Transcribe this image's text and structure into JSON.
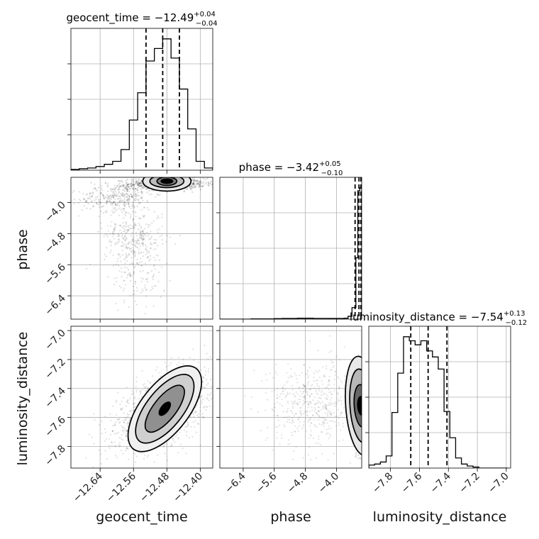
{
  "chart_data": {
    "type": "scatter",
    "title": "",
    "parameters": [
      {
        "name": "geocent_time",
        "title": {
          "prefix": "geocent_time = ",
          "median": "−12.49",
          "plus": "+0.04",
          "minus": "−0.04"
        },
        "range": [
          -12.71,
          -12.37
        ],
        "ticks": [
          -12.64,
          -12.56,
          -12.48,
          -12.4
        ],
        "tick_labels": [
          "−12.64",
          "−12.56",
          "−12.48",
          "−12.40"
        ],
        "quantiles": [
          -12.53,
          -12.49,
          -12.45
        ]
      },
      {
        "name": "phase",
        "title": {
          "prefix": "phase = ",
          "median": "−3.42",
          "plus": "+0.05",
          "minus": "−0.10"
        },
        "range": [
          -7.0,
          -3.35
        ],
        "ticks": [
          -6.4,
          -5.6,
          -4.8,
          -4.0
        ],
        "tick_labels": [
          "−6.4",
          "−5.6",
          "−4.8",
          "−4.0"
        ],
        "quantiles": [
          -3.52,
          -3.42,
          -3.37
        ]
      },
      {
        "name": "luminosity_distance",
        "title": {
          "prefix": "luminosity_distance = ",
          "median": "−7.54",
          "plus": "+0.13",
          "minus": "−0.12"
        },
        "range": [
          -7.95,
          -6.97
        ],
        "ticks": [
          -7.8,
          -7.6,
          -7.4,
          -7.2,
          -7.0
        ],
        "tick_labels": [
          "−7.8",
          "−7.6",
          "−7.4",
          "−7.2",
          "−7.0"
        ],
        "quantiles": [
          -7.66,
          -7.54,
          -7.41
        ]
      }
    ],
    "histograms": {
      "geocent_time": {
        "bin_edges": [
          -12.71,
          -12.69,
          -12.67,
          -12.65,
          -12.63,
          -12.61,
          -12.59,
          -12.57,
          -12.55,
          -12.53,
          -12.51,
          -12.49,
          -12.47,
          -12.45,
          -12.43,
          -12.41,
          -12.39,
          -12.37
        ],
        "counts": [
          1,
          2,
          3,
          5,
          8,
          12,
          28,
          68,
          105,
          148,
          165,
          178,
          152,
          110,
          56,
          12,
          3
        ]
      },
      "phase": {
        "bin_edges": [
          -7.0,
          -6.8,
          -6.6,
          -6.4,
          -6.2,
          -6.0,
          -5.8,
          -5.6,
          -5.4,
          -5.2,
          -5.0,
          -4.8,
          -4.6,
          -4.4,
          -4.2,
          -4.0,
          -3.8,
          -3.7,
          -3.6,
          -3.5,
          -3.45,
          -3.4,
          -3.35
        ],
        "counts": [
          0,
          0,
          0,
          0,
          0.4,
          0.4,
          0.4,
          0.7,
          0.9,
          0.9,
          1.3,
          1.3,
          1.0,
          1.0,
          0.9,
          0.9,
          1.3,
          4,
          16,
          85,
          178,
          182
        ]
      },
      "luminosity_distance": {
        "bin_edges": [
          -7.95,
          -7.91,
          -7.87,
          -7.83,
          -7.79,
          -7.75,
          -7.71,
          -7.67,
          -7.63,
          -7.59,
          -7.55,
          -7.51,
          -7.47,
          -7.43,
          -7.39,
          -7.35,
          -7.31,
          -7.27,
          -7.23,
          -7.19,
          -7.15,
          -7.11,
          -7.07,
          -7.03,
          -6.99
        ],
        "counts": [
          3,
          4,
          6,
          12,
          55,
          94,
          130,
          126,
          122,
          126,
          116,
          110,
          98,
          56,
          30,
          10,
          4,
          2,
          1,
          0,
          0,
          0,
          0,
          0
        ]
      }
    },
    "axis_labels": {
      "x": [
        "geocent_time",
        "phase",
        "luminosity_distance"
      ],
      "y": [
        "",
        "phase",
        "luminosity_distance"
      ]
    },
    "contour_levels": [
      0.39,
      0.86,
      0.99
    ],
    "grid": true,
    "colors": {
      "line": "#000000",
      "grid": "#b0b0b0",
      "points": "#000000",
      "fill": "#000000"
    }
  }
}
